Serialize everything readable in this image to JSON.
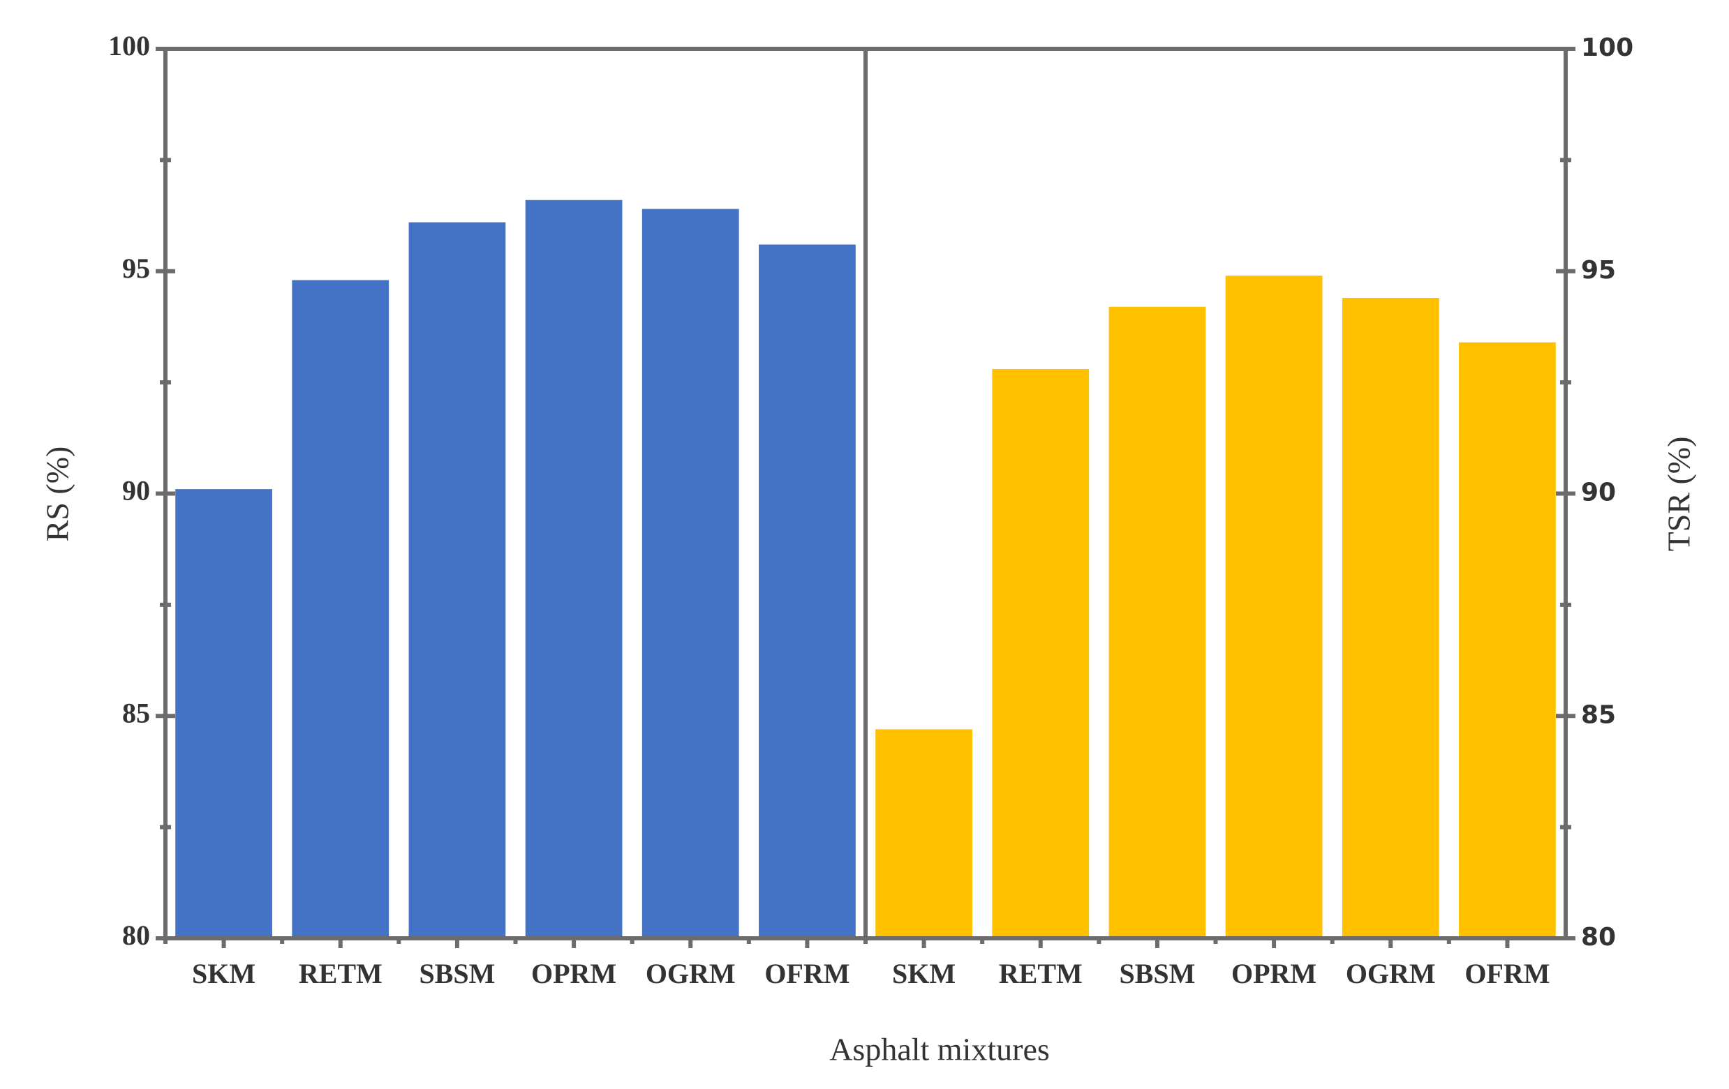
{
  "chart_data": {
    "type": "bar",
    "x_label": "Asphalt mixtures",
    "y_label": "RS (%)",
    "y2_label": "TSR (%)",
    "categories": [
      "SKM",
      "RETM",
      "SBSM",
      "OPRM",
      "OGRM",
      "OFRM",
      "SKM",
      "RETM",
      "SBSM",
      "OPRM",
      "OGRM",
      "OFRM"
    ],
    "series": [
      {
        "color": "#4472c4",
        "values": [
          90.1,
          94.8,
          96.1,
          96.6,
          96.4,
          95.6,
          null,
          null,
          null,
          null,
          null,
          null
        ]
      },
      {
        "color": "#ffc000",
        "axis": "y2",
        "values": [
          null,
          null,
          null,
          null,
          null,
          null,
          84.7,
          92.8,
          94.2,
          94.9,
          94.4,
          93.4
        ]
      }
    ],
    "ylim": [
      80,
      100
    ],
    "yticks": [
      80,
      85,
      90,
      95,
      100
    ],
    "yminorticks": [
      82.5,
      87.5,
      92.5,
      97.5
    ],
    "y2lim": [
      80,
      100
    ],
    "y2ticks": [
      80,
      85,
      90,
      95,
      100
    ],
    "y2minorticks": [
      82.5,
      87.5,
      92.5,
      97.5
    ]
  }
}
